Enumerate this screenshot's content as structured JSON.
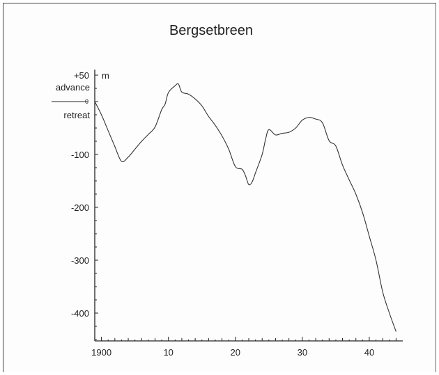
{
  "chart_data": {
    "type": "line",
    "title": "Bergsetbreen",
    "ylabel_unit": "m",
    "above_zero_label": "advance",
    "below_zero_label": "retreat",
    "xlim": [
      1899,
      1945
    ],
    "ylim": [
      -460,
      55
    ],
    "x_ticks": [
      {
        "value": 1900,
        "label": "1900"
      },
      {
        "value": 1910,
        "label": "10"
      },
      {
        "value": 1920,
        "label": "20"
      },
      {
        "value": 1930,
        "label": "30"
      },
      {
        "value": 1940,
        "label": "40"
      }
    ],
    "y_ticks": [
      {
        "value": 50,
        "label": "+50"
      },
      {
        "value": 0,
        "label": "0"
      },
      {
        "value": -100,
        "label": "-100"
      },
      {
        "value": -200,
        "label": "-200"
      },
      {
        "value": -300,
        "label": "-300"
      },
      {
        "value": -400,
        "label": "-400"
      }
    ],
    "series": [
      {
        "color": "#333333",
        "points": [
          [
            1899,
            0
          ],
          [
            1900,
            -25
          ],
          [
            1901,
            -55
          ],
          [
            1902,
            -85
          ],
          [
            1903,
            -113
          ],
          [
            1904,
            -105
          ],
          [
            1905,
            -90
          ],
          [
            1906,
            -75
          ],
          [
            1907,
            -62
          ],
          [
            1908,
            -48
          ],
          [
            1909,
            -15
          ],
          [
            1909.5,
            -5
          ],
          [
            1910,
            17
          ],
          [
            1911,
            30
          ],
          [
            1911.5,
            33
          ],
          [
            1912,
            18
          ],
          [
            1913,
            14
          ],
          [
            1914,
            5
          ],
          [
            1915,
            -8
          ],
          [
            1916,
            -28
          ],
          [
            1917,
            -45
          ],
          [
            1918,
            -65
          ],
          [
            1919,
            -90
          ],
          [
            1920,
            -123
          ],
          [
            1921,
            -128
          ],
          [
            1921.5,
            -140
          ],
          [
            1922,
            -157
          ],
          [
            1922.5,
            -152
          ],
          [
            1923,
            -135
          ],
          [
            1924,
            -100
          ],
          [
            1924.5,
            -72
          ],
          [
            1925,
            -53
          ],
          [
            1926,
            -63
          ],
          [
            1927,
            -60
          ],
          [
            1928,
            -58
          ],
          [
            1929,
            -50
          ],
          [
            1930,
            -35
          ],
          [
            1931,
            -30
          ],
          [
            1932,
            -33
          ],
          [
            1933,
            -40
          ],
          [
            1934,
            -74
          ],
          [
            1935,
            -84
          ],
          [
            1936,
            -120
          ],
          [
            1937,
            -148
          ],
          [
            1938,
            -175
          ],
          [
            1939,
            -210
          ],
          [
            1940,
            -255
          ],
          [
            1941,
            -300
          ],
          [
            1942,
            -360
          ],
          [
            1943,
            -400
          ],
          [
            1944,
            -435
          ]
        ]
      }
    ]
  }
}
